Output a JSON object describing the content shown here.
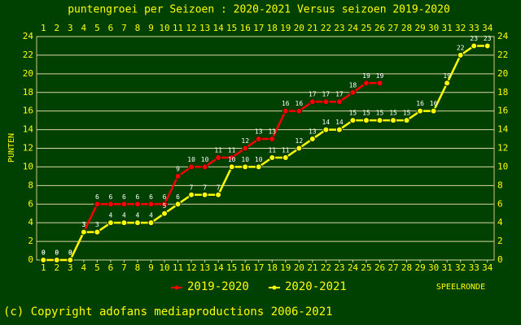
{
  "chart_data": {
    "type": "line",
    "title": "puntengroei per Seizoen : 2020-2021 Versus seizoen 2019-2020",
    "ylabel": "PUNTEN",
    "xlabel": "SPEELRONDE",
    "copyright": "(c) Copyright adofans mediaproductions 2006-2021",
    "x": [
      1,
      2,
      3,
      4,
      5,
      6,
      7,
      8,
      9,
      10,
      11,
      12,
      13,
      14,
      15,
      16,
      17,
      18,
      19,
      20,
      21,
      22,
      23,
      24,
      25,
      26,
      27,
      28,
      29,
      30,
      31,
      32,
      33,
      34
    ],
    "series": [
      {
        "name": "2019-2020",
        "color": "#ff0000",
        "values": [
          0,
          0,
          0,
          3,
          6,
          6,
          6,
          6,
          6,
          6,
          9,
          10,
          10,
          11,
          11,
          12,
          13,
          13,
          16,
          16,
          17,
          17,
          17,
          18,
          19,
          19,
          null,
          null,
          null,
          null,
          null,
          null,
          null,
          null
        ]
      },
      {
        "name": "2020-2021",
        "color": "#ffff00",
        "values": [
          0,
          0,
          0,
          3,
          3,
          4,
          4,
          4,
          4,
          5,
          6,
          7,
          7,
          7,
          10,
          10,
          10,
          11,
          11,
          12,
          13,
          14,
          14,
          15,
          15,
          15,
          15,
          15,
          16,
          16,
          19,
          22,
          23,
          23
        ]
      }
    ],
    "xlim": [
      0.5,
      34.5
    ],
    "xticks": [
      1,
      2,
      3,
      4,
      5,
      6,
      7,
      8,
      9,
      10,
      11,
      12,
      13,
      14,
      15,
      16,
      17,
      18,
      19,
      20,
      21,
      22,
      23,
      24,
      25,
      26,
      27,
      28,
      29,
      30,
      31,
      32,
      33,
      34
    ],
    "ylim": [
      0,
      24
    ],
    "yticks": [
      0,
      2,
      4,
      6,
      8,
      10,
      12,
      14,
      16,
      18,
      20,
      22,
      24
    ],
    "grid": true
  }
}
